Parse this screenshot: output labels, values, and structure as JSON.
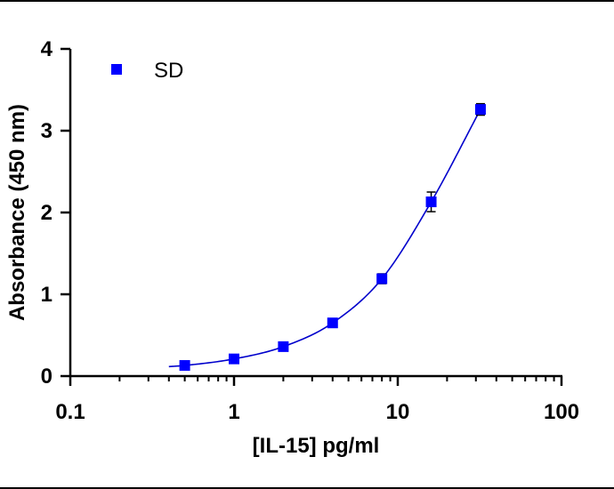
{
  "chart_data": {
    "type": "scatter",
    "xlabel": "[IL-15] pg/ml",
    "ylabel": "Absorbance (450 nm)",
    "xscale": "log",
    "xlim": [
      0.1,
      100
    ],
    "ylim": [
      0,
      4
    ],
    "xticks": [
      "0.1",
      "1",
      "10",
      "100"
    ],
    "xtick_values": [
      0.1,
      1,
      10,
      100
    ],
    "yticks": [
      "0",
      "1",
      "2",
      "3",
      "4"
    ],
    "ytick_values": [
      0,
      1,
      2,
      3,
      4
    ],
    "grid": false,
    "legend_position": "top-left",
    "series": [
      {
        "name": "SD",
        "color": "#0000ff",
        "marker": "square",
        "x": [
          0.5,
          1.0,
          2.0,
          4.0,
          8.0,
          16.0,
          32.0
        ],
        "y": [
          0.13,
          0.21,
          0.36,
          0.65,
          1.19,
          2.13,
          3.26
        ],
        "error": [
          0.02,
          0.02,
          0.02,
          0.03,
          0.06,
          0.12,
          0.07
        ],
        "fit_curve": true
      }
    ]
  }
}
